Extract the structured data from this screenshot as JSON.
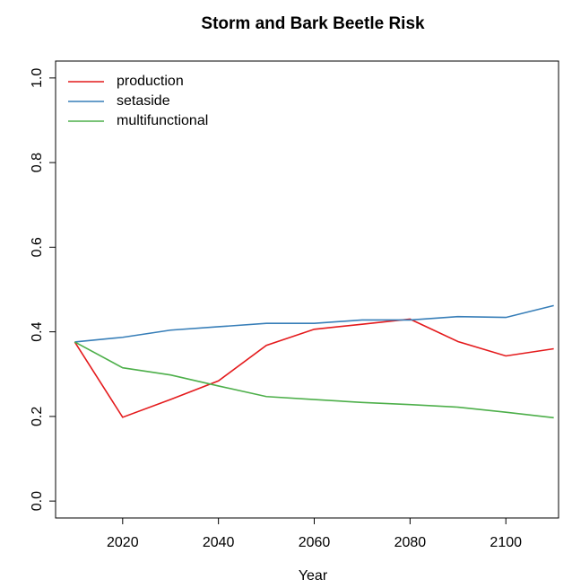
{
  "chart_data": {
    "type": "line",
    "title": "Storm and Bark Beetle Risk",
    "x_label": "Year",
    "x": [
      2010,
      2020,
      2030,
      2040,
      2050,
      2060,
      2070,
      2080,
      2090,
      2100,
      2110
    ],
    "series": [
      {
        "name": "production",
        "color": "#e41a1c",
        "values": [
          0.376,
          0.198,
          0.24,
          0.284,
          0.368,
          0.406,
          0.418,
          0.43,
          0.377,
          0.343,
          0.36
        ]
      },
      {
        "name": "setaside",
        "color": "#377eb8",
        "values": [
          0.376,
          0.387,
          0.404,
          0.412,
          0.42,
          0.42,
          0.428,
          0.428,
          0.436,
          0.434,
          0.462
        ]
      },
      {
        "name": "multifunctional",
        "color": "#4daf4a",
        "values": [
          0.376,
          0.315,
          0.298,
          0.272,
          0.247,
          0.24,
          0.233,
          0.228,
          0.222,
          0.21,
          0.197
        ]
      }
    ],
    "xlim": [
      2006,
      2111
    ],
    "xticks": [
      2020,
      2040,
      2060,
      2080,
      2100
    ],
    "ylim": [
      -0.04,
      1.04
    ],
    "yticks": [
      {
        "value": 0,
        "label": "0.0"
      },
      0.2,
      0.4,
      0.6,
      0.8,
      {
        "value": 1,
        "label": "1.0"
      }
    ],
    "legend": "top-left"
  }
}
